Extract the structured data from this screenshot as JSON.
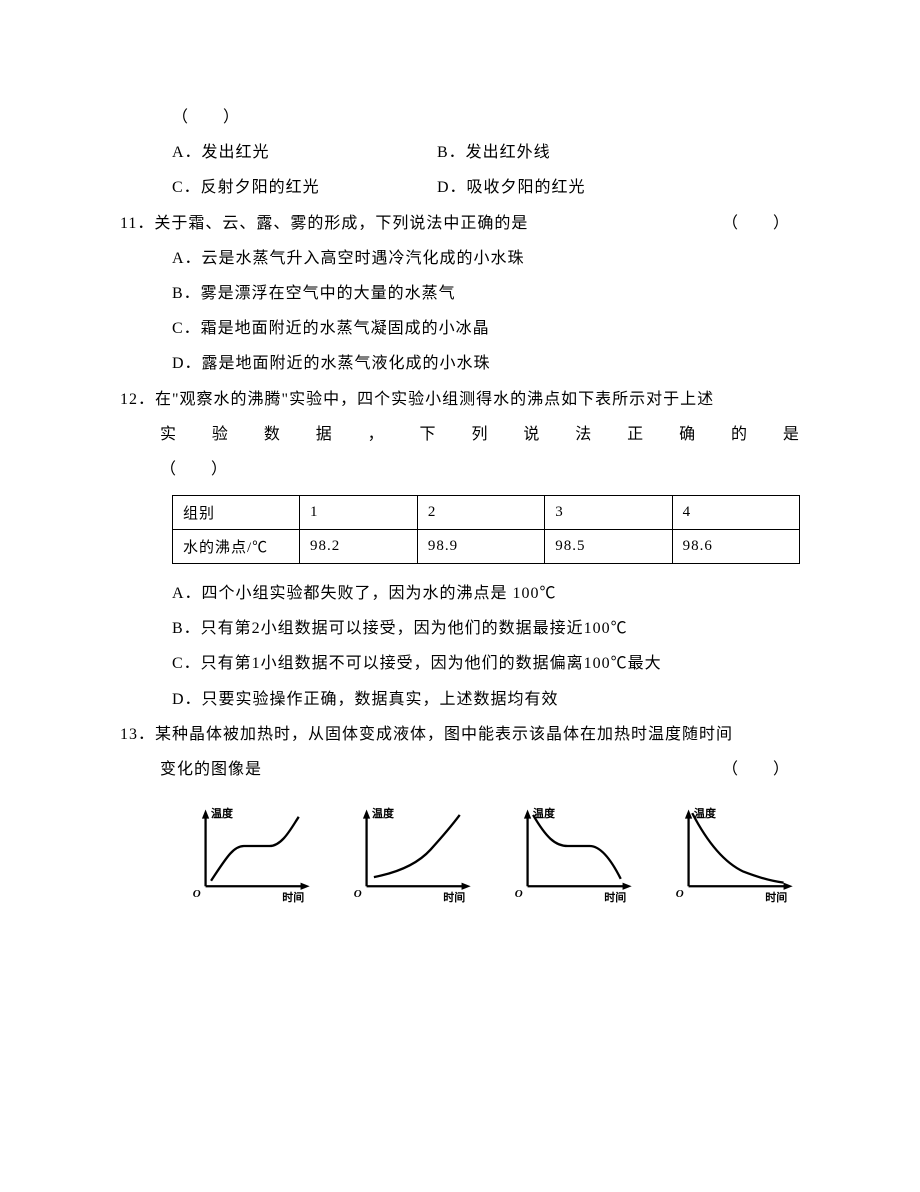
{
  "q10": {
    "paren": "（　　）",
    "options": {
      "a": "A．发出红光",
      "b": "B．发出红外线",
      "c": "C．反射夕阳的红光",
      "d": "D．吸收夕阳的红光"
    }
  },
  "q11": {
    "num": "11．",
    "stem": "关于霜、云、露、雾的形成，下列说法中正确的是",
    "paren": "（　　）",
    "options": {
      "a": "A．云是水蒸气升入高空时遇冷汽化成的小水珠",
      "b": "B．雾是漂浮在空气中的大量的水蒸气",
      "c": "C．霜是地面附近的水蒸气凝固成的小冰晶",
      "d": "D．露是地面附近的水蒸气液化成的小水珠"
    }
  },
  "q12": {
    "num": "12．",
    "stem1": "在\"观察水的沸腾\"实验中，四个实验小组测得水的沸点如下表所示对于上述",
    "stem2_chars": "实验数据，下列说法正确的是",
    "paren": "（　　）",
    "table": {
      "header": [
        "组别",
        "1",
        "2",
        "3",
        "4"
      ],
      "row_label": "水的沸点/℃",
      "values": [
        "98.2",
        "98.9",
        "98.5",
        "98.6"
      ],
      "col_widths": [
        "110px",
        "100px",
        "110px",
        "110px",
        "110px"
      ]
    },
    "options": {
      "a": "A．四个小组实验都失败了，因为水的沸点是 100℃",
      "b": "B．只有第2小组数据可以接受，因为他们的数据最接近100℃",
      "c": "C．只有第1小组数据不可以接受，因为他们的数据偏离100℃最大",
      "d": "D．只要实验操作正确，数据真实，上述数据均有效"
    }
  },
  "q13": {
    "num": "13．",
    "stem1": "某种晶体被加热时，从固体变成液体，图中能表示该晶体在加热时温度随时间",
    "stem2": "变化的图像是",
    "paren": "（　　）",
    "charts": {
      "ylabel": "温度",
      "xlabel": "时间",
      "origin": "O",
      "axis_color": "#000000",
      "axis_width": 2.5,
      "curve_color": "#000000",
      "curve_width": 2.5,
      "types": [
        "rise-plateau-rise",
        "concave-rise",
        "fall-plateau-fall",
        "decay"
      ]
    }
  }
}
